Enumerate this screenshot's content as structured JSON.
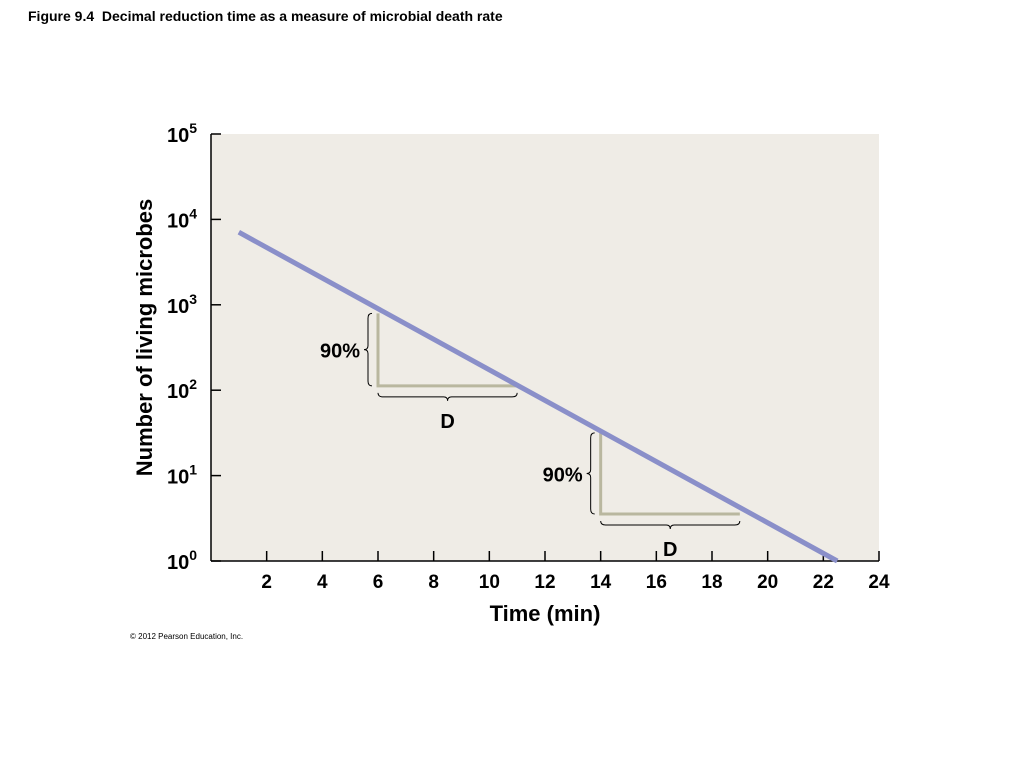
{
  "figure": {
    "title": "Figure 9.4  Decimal reduction time as a measure of microbial death rate",
    "copyright": "© 2012 Pearson Education, Inc."
  },
  "colors": {
    "plot_background": "#efece6",
    "line": "#8a8fc9",
    "bracket": "#b9b79f",
    "axis": "#000000"
  },
  "chart_data": {
    "type": "line",
    "title": "",
    "xlabel": "Time (min)",
    "ylabel": "Number of living microbes",
    "xlim": [
      0,
      24
    ],
    "ylim": [
      0,
      5
    ],
    "yscale": "log",
    "x_ticks": [
      2,
      4,
      6,
      8,
      10,
      12,
      14,
      16,
      18,
      20,
      22,
      24
    ],
    "y_ticks": [
      {
        "value": 0,
        "base": "10",
        "exp": "0"
      },
      {
        "value": 1,
        "base": "10",
        "exp": "1"
      },
      {
        "value": 2,
        "base": "10",
        "exp": "2"
      },
      {
        "value": 3,
        "base": "10",
        "exp": "3"
      },
      {
        "value": 4,
        "base": "10",
        "exp": "4"
      },
      {
        "value": 5,
        "base": "10",
        "exp": "5"
      }
    ],
    "series": [
      {
        "x": [
          1,
          22.5
        ],
        "log10_y": [
          3.85,
          0
        ]
      }
    ],
    "grid": false,
    "legend": "none",
    "annotations": [
      {
        "x_start": 6,
        "x_end": 11,
        "log10_y_top": 2.9,
        "log10_y_bottom": 2.05,
        "percent_label": "90%",
        "d_label": "D"
      },
      {
        "x_start": 14,
        "x_end": 19,
        "log10_y_top": 1.5,
        "log10_y_bottom": 0.55,
        "percent_label": "90%",
        "d_label": "D"
      }
    ]
  }
}
